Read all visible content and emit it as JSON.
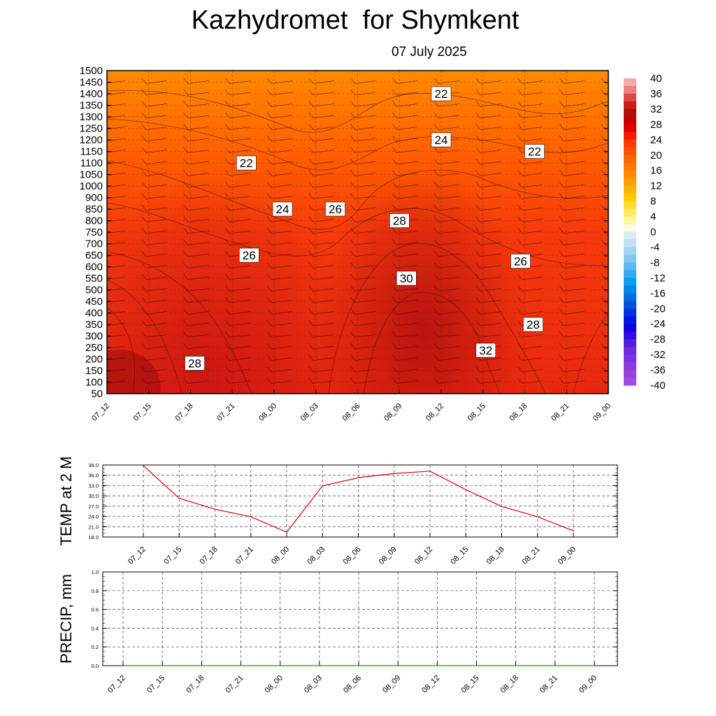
{
  "title": "Kazhydromet  for Shymkent",
  "date": "07 July 2025",
  "time_labels": [
    "07_12",
    "07_15",
    "07_18",
    "07_21",
    "08_00",
    "08_03",
    "08_06",
    "08_09",
    "08_12",
    "08_15",
    "08_18",
    "08_21",
    "09_00"
  ],
  "colorbar": {
    "labels": [
      "40",
      "36",
      "32",
      "28",
      "24",
      "20",
      "16",
      "12",
      "8",
      "4",
      "0",
      "-4",
      "-8",
      "-12",
      "-16",
      "-20",
      "-24",
      "-28",
      "-32",
      "-36",
      "-40"
    ]
  },
  "chart_data": [
    {
      "type": "heatmap",
      "title": "Kazhydromet  for Shymkent",
      "subtitle": "07 July 2025",
      "y_ticks": [
        "1500",
        "1450",
        "1400",
        "1350",
        "1300",
        "1250",
        "1200",
        "1150",
        "1100",
        "1050",
        "1000",
        "900",
        "850",
        "800",
        "750",
        "700",
        "650",
        "600",
        "550",
        "500",
        "450",
        "400",
        "350",
        "300",
        "250",
        "200",
        "150",
        "100",
        "50"
      ],
      "contour_labels": [
        {
          "text": "22",
          "time": "08_12",
          "level": "1400"
        },
        {
          "text": "24",
          "time": "08_12",
          "level": "1200"
        },
        {
          "text": "22",
          "time": "08_18",
          "level": "1150"
        },
        {
          "text": "22",
          "time": "07_21",
          "level": "1100"
        },
        {
          "text": "24",
          "time": "08_00",
          "level": "850"
        },
        {
          "text": "26",
          "time": "08_06",
          "level": "850"
        },
        {
          "text": "28",
          "time": "08_09",
          "level": "800"
        },
        {
          "text": "26",
          "time": "07_21",
          "level": "650"
        },
        {
          "text": "26",
          "time": "08_18",
          "level": "600"
        },
        {
          "text": "30",
          "time": "08_09",
          "level": "550"
        },
        {
          "text": "28",
          "time": "08_18",
          "level": "350"
        },
        {
          "text": "32",
          "time": "08_15",
          "level": "250"
        },
        {
          "text": "28",
          "time": "07_18",
          "level": "200"
        }
      ]
    },
    {
      "type": "line",
      "ylabel": "TEMP at 2 M",
      "y_ticks": [
        "39.0",
        "36.0",
        "33.0",
        "30.0",
        "27.0",
        "24.0",
        "21.0",
        "18.0"
      ],
      "ylim": [
        18,
        39
      ],
      "line_color": "#e00000",
      "x": [
        "07_12",
        "07_15",
        "07_18",
        "07_21",
        "08_00",
        "08_03",
        "08_06",
        "08_09",
        "08_12",
        "08_15",
        "08_18",
        "08_21",
        "09_00"
      ],
      "values": [
        38.8,
        29.3,
        26.1,
        23.9,
        19.4,
        32.9,
        35.3,
        36.5,
        37.2,
        31.8,
        26.9,
        23.9,
        19.8
      ]
    },
    {
      "type": "line",
      "ylabel": "PRECIP, mm",
      "y_ticks": [
        "1.0",
        "0.8",
        "0.6",
        "0.4",
        "0.2",
        "0.0"
      ],
      "ylim": [
        0,
        1
      ],
      "line_color": "#00a000",
      "x": [
        "07_12",
        "07_15",
        "07_18",
        "07_21",
        "08_00",
        "08_03",
        "08_06",
        "08_09",
        "08_12",
        "08_15",
        "08_18",
        "08_21",
        "09_00"
      ],
      "values": [
        0,
        0,
        0,
        0,
        0,
        0,
        0,
        0,
        0,
        0,
        0,
        0,
        0
      ]
    }
  ]
}
